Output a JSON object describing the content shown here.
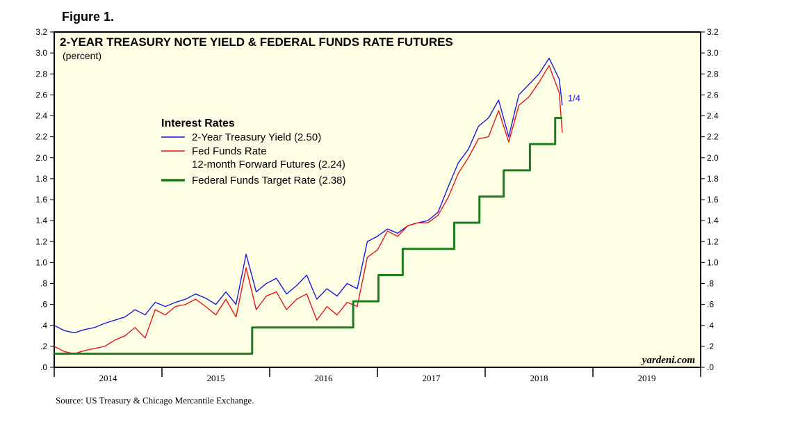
{
  "figure_label": "Figure 1.",
  "source": "Source: US Treasury & Chicago Mercantile Exchange.",
  "colors": {
    "treasury": "#1a1adf",
    "futures": "#e8141a",
    "target": "#1a7f1a",
    "plot_bg": "#ffffe6"
  },
  "chart_data": {
    "type": "line",
    "title": "2-YEAR TREASURY NOTE YIELD & FEDERAL FUNDS RATE FUTURES",
    "subtitle": "(percent)",
    "ylim": [
      0,
      3.2
    ],
    "xlim": [
      2013.0,
      2019.4
    ],
    "y_ticks": [
      0,
      0.2,
      0.4,
      0.6,
      0.8,
      1.0,
      1.2,
      1.4,
      1.6,
      1.8,
      2.0,
      2.2,
      2.4,
      2.6,
      2.8,
      3.0,
      3.2
    ],
    "y_tick_labels": [
      ".0",
      ".2",
      ".4",
      ".6",
      ".8",
      "1.0",
      "1.2",
      "1.4",
      "1.6",
      "1.8",
      "2.0",
      "2.2",
      "2.4",
      "2.6",
      "2.8",
      "3.0",
      "3.2"
    ],
    "x_tick_labels": [
      "2014",
      "2015",
      "2016",
      "2017",
      "2018",
      "2019"
    ],
    "legend": {
      "title": "Interest Rates",
      "position": "upper-left",
      "entries": [
        {
          "text": "2-Year Treasury Yield (2.50)",
          "series": 0
        },
        {
          "text": "Fed Funds Rate",
          "series": 1
        },
        {
          "text": "12-month Forward Futures (2.24)",
          "series": 1
        },
        {
          "text": "Federal Funds Target Rate (2.38)",
          "series": 2
        }
      ]
    },
    "annotations": [
      {
        "text": "1/4",
        "x": 2018.03,
        "y": 2.5
      }
    ],
    "watermark": "yardeni.com",
    "series": [
      {
        "name": "2-Year Treasury Yield",
        "color": "#1a1adf",
        "x": [
          2013.0,
          2013.1,
          2013.2,
          2013.3,
          2013.4,
          2013.5,
          2013.6,
          2013.7,
          2013.8,
          2013.9,
          2014.0,
          2014.1,
          2014.2,
          2014.3,
          2014.4,
          2014.5,
          2014.6,
          2014.7,
          2014.8,
          2014.9,
          2015.0,
          2015.1,
          2015.2,
          2015.3,
          2015.4,
          2015.5,
          2015.6,
          2015.7,
          2015.8,
          2015.9,
          2016.0,
          2016.1,
          2016.2,
          2016.3,
          2016.4,
          2016.5,
          2016.6,
          2016.7,
          2016.8,
          2016.9,
          2017.0,
          2017.1,
          2017.2,
          2017.3,
          2017.4,
          2017.5,
          2017.6,
          2017.7,
          2017.8,
          2017.9,
          2018.0,
          2018.03
        ],
        "y": [
          0.4,
          0.35,
          0.33,
          0.36,
          0.38,
          0.42,
          0.45,
          0.48,
          0.55,
          0.5,
          0.62,
          0.58,
          0.62,
          0.65,
          0.7,
          0.66,
          0.6,
          0.72,
          0.6,
          1.08,
          0.72,
          0.8,
          0.85,
          0.7,
          0.78,
          0.88,
          0.65,
          0.75,
          0.68,
          0.8,
          0.75,
          1.2,
          1.25,
          1.32,
          1.28,
          1.35,
          1.38,
          1.4,
          1.48,
          1.72,
          1.95,
          2.08,
          2.3,
          2.38,
          2.55,
          2.2,
          2.6,
          2.7,
          2.8,
          2.95,
          2.75,
          2.5
        ]
      },
      {
        "name": "Fed Funds Rate 12-month Forward Futures",
        "color": "#e8141a",
        "x": [
          2013.0,
          2013.1,
          2013.2,
          2013.3,
          2013.4,
          2013.5,
          2013.6,
          2013.7,
          2013.8,
          2013.9,
          2014.0,
          2014.1,
          2014.2,
          2014.3,
          2014.4,
          2014.5,
          2014.6,
          2014.7,
          2014.8,
          2014.9,
          2015.0,
          2015.1,
          2015.2,
          2015.3,
          2015.4,
          2015.5,
          2015.6,
          2015.7,
          2015.8,
          2015.9,
          2016.0,
          2016.1,
          2016.2,
          2016.3,
          2016.4,
          2016.5,
          2016.6,
          2016.7,
          2016.8,
          2016.9,
          2017.0,
          2017.1,
          2017.2,
          2017.3,
          2017.4,
          2017.5,
          2017.6,
          2017.7,
          2017.8,
          2017.9,
          2018.0,
          2018.03
        ],
        "y": [
          0.2,
          0.15,
          0.13,
          0.16,
          0.18,
          0.2,
          0.26,
          0.3,
          0.38,
          0.28,
          0.55,
          0.5,
          0.58,
          0.6,
          0.65,
          0.58,
          0.5,
          0.65,
          0.48,
          0.95,
          0.55,
          0.68,
          0.72,
          0.55,
          0.65,
          0.7,
          0.45,
          0.58,
          0.5,
          0.62,
          0.58,
          1.05,
          1.12,
          1.3,
          1.25,
          1.35,
          1.38,
          1.38,
          1.45,
          1.62,
          1.85,
          2.0,
          2.18,
          2.2,
          2.45,
          2.15,
          2.5,
          2.58,
          2.72,
          2.88,
          2.62,
          2.24
        ]
      },
      {
        "name": "Federal Funds Target Rate",
        "color": "#1a7f1a",
        "step": true,
        "x": [
          2013.0,
          2014.96,
          2015.96,
          2016.21,
          2016.45,
          2016.96,
          2017.21,
          2017.45,
          2017.71,
          2017.96,
          2018.03
        ],
        "y": [
          0.13,
          0.38,
          0.63,
          0.88,
          1.13,
          1.38,
          1.63,
          1.88,
          2.13,
          2.38,
          2.38
        ]
      }
    ]
  }
}
